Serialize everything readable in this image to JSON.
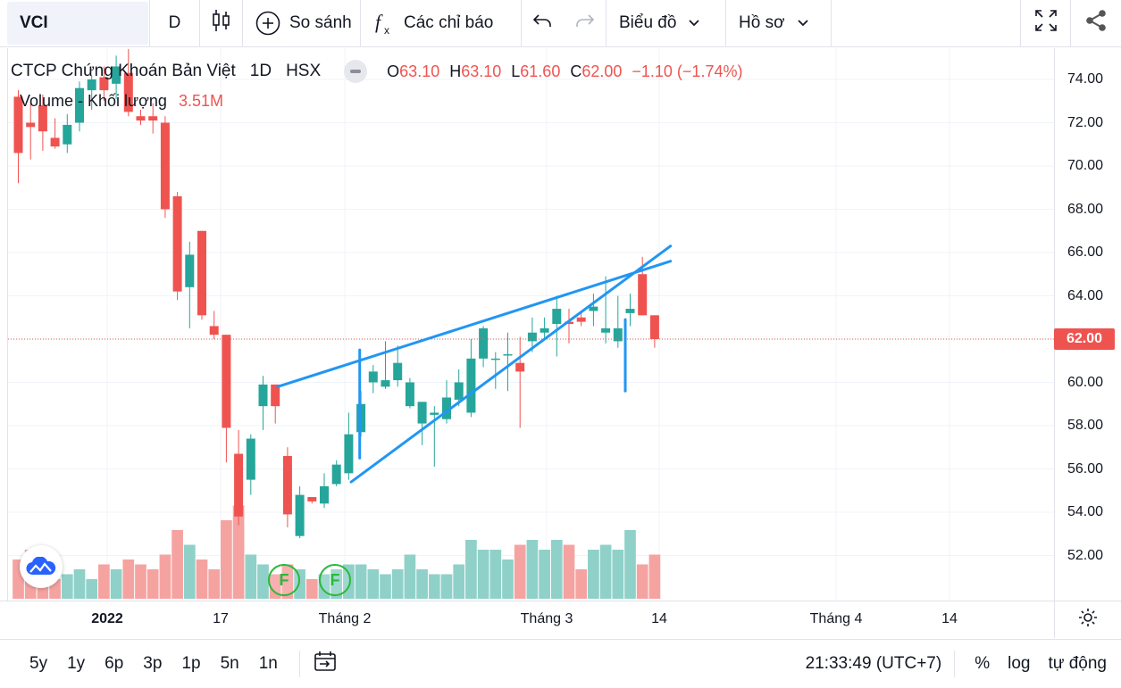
{
  "toolbar": {
    "symbol": "VCI",
    "interval": "D",
    "compare_label": "So sánh",
    "indicators_label": "Các chỉ báo",
    "chart_type_label": "Biểu đồ",
    "profile_label": "Hồ sơ",
    "icons": [
      "candles-icon",
      "plus-circle-icon",
      "fx-icon",
      "undo-icon",
      "redo-icon",
      "chevron-down-icon",
      "fullscreen-icon",
      "share-icon"
    ]
  },
  "legend": {
    "title": "CTCP Chứng Khoán Bản Việt",
    "interval": "1D",
    "exchange": "HSX",
    "o_label": "O",
    "o_value": "63.10",
    "h_label": "H",
    "h_value": "63.10",
    "l_label": "L",
    "l_value": "61.60",
    "c_label": "C",
    "c_value": "62.00",
    "change": "−1.10 (−1.74%)",
    "volume_label": "Volume - Khối lượng",
    "volume_value": "3.51M"
  },
  "price_axis": {
    "labels": [
      "74.00",
      "72.00",
      "70.00",
      "68.00",
      "66.00",
      "64.00",
      "62.00",
      "60.00",
      "58.00",
      "56.00",
      "54.00",
      "52.00"
    ],
    "last_price": "62.00",
    "last_price_color": "#ef5350"
  },
  "time_axis": {
    "labels": [
      "2022",
      "17",
      "Tháng 2",
      "Tháng 3",
      "14",
      "Tháng 4",
      "14"
    ]
  },
  "badges": [
    "F",
    "F"
  ],
  "bottom_bar": {
    "ranges": [
      "5y",
      "1y",
      "6p",
      "3p",
      "1p",
      "5n",
      "1n"
    ],
    "clock": "21:33:49 (UTC+7)",
    "percent_label": "%",
    "log_label": "log",
    "auto_label": "tự động"
  },
  "colors": {
    "up": "#26a69a",
    "down": "#ef5350",
    "trendline": "#2196f3",
    "vol_up": "#8fd1c9",
    "vol_down": "#f5a3a1"
  },
  "chart_data": {
    "type": "candlestick",
    "symbol": "VCI",
    "ylim": [
      50.0,
      75.5
    ],
    "candles": [
      {
        "o": 73.2,
        "h": 73.5,
        "l": 69.2,
        "c": 70.6
      },
      {
        "o": 72.0,
        "h": 72.9,
        "l": 70.3,
        "c": 71.8
      },
      {
        "o": 72.8,
        "h": 73.3,
        "l": 70.7,
        "c": 71.6
      },
      {
        "o": 71.3,
        "h": 72.2,
        "l": 70.8,
        "c": 70.9
      },
      {
        "o": 71.0,
        "h": 72.4,
        "l": 70.6,
        "c": 71.9
      },
      {
        "o": 72.0,
        "h": 73.9,
        "l": 71.6,
        "c": 73.6
      },
      {
        "o": 73.5,
        "h": 74.2,
        "l": 72.6,
        "c": 74.0
      },
      {
        "o": 74.1,
        "h": 74.6,
        "l": 73.0,
        "c": 73.5
      },
      {
        "o": 73.8,
        "h": 75.1,
        "l": 73.1,
        "c": 74.6
      },
      {
        "o": 74.3,
        "h": 75.4,
        "l": 72.3,
        "c": 72.5
      },
      {
        "o": 72.3,
        "h": 72.6,
        "l": 71.9,
        "c": 72.1
      },
      {
        "o": 72.3,
        "h": 72.9,
        "l": 71.5,
        "c": 72.1
      },
      {
        "o": 72.0,
        "h": 72.3,
        "l": 67.6,
        "c": 68.0
      },
      {
        "o": 68.6,
        "h": 68.8,
        "l": 63.8,
        "c": 64.2
      },
      {
        "o": 64.4,
        "h": 66.5,
        "l": 62.5,
        "c": 65.9
      },
      {
        "o": 67.0,
        "h": 67.0,
        "l": 62.9,
        "c": 63.1
      },
      {
        "o": 62.6,
        "h": 63.3,
        "l": 62.0,
        "c": 62.2
      },
      {
        "o": 62.2,
        "h": 62.2,
        "l": 56.3,
        "c": 57.9
      },
      {
        "o": 56.7,
        "h": 57.8,
        "l": 53.4,
        "c": 53.8
      },
      {
        "o": 55.5,
        "h": 57.6,
        "l": 54.8,
        "c": 57.4
      },
      {
        "o": 58.9,
        "h": 60.3,
        "l": 57.8,
        "c": 59.9
      },
      {
        "o": 59.9,
        "h": 59.9,
        "l": 58.1,
        "c": 58.9
      },
      {
        "o": 56.6,
        "h": 57.0,
        "l": 53.3,
        "c": 53.9
      },
      {
        "o": 52.9,
        "h": 55.2,
        "l": 52.8,
        "c": 54.8
      },
      {
        "o": 54.7,
        "h": 54.7,
        "l": 54.4,
        "c": 54.5
      },
      {
        "o": 54.4,
        "h": 55.8,
        "l": 54.2,
        "c": 55.2
      },
      {
        "o": 55.3,
        "h": 56.4,
        "l": 55.2,
        "c": 56.2
      },
      {
        "o": 55.8,
        "h": 58.6,
        "l": 55.5,
        "c": 57.6
      },
      {
        "o": 57.7,
        "h": 59.6,
        "l": 57.5,
        "c": 59.0
      },
      {
        "o": 60.0,
        "h": 60.8,
        "l": 59.5,
        "c": 60.5
      },
      {
        "o": 59.8,
        "h": 61.9,
        "l": 59.7,
        "c": 60.1
      },
      {
        "o": 60.1,
        "h": 61.7,
        "l": 59.8,
        "c": 60.9
      },
      {
        "o": 58.9,
        "h": 60.2,
        "l": 58.8,
        "c": 60.0
      },
      {
        "o": 58.1,
        "h": 58.9,
        "l": 57.1,
        "c": 59.1
      },
      {
        "o": 58.5,
        "h": 58.9,
        "l": 56.1,
        "c": 58.6
      },
      {
        "o": 58.3,
        "h": 60.1,
        "l": 58.1,
        "c": 59.3
      },
      {
        "o": 59.2,
        "h": 60.6,
        "l": 58.9,
        "c": 60.0
      },
      {
        "o": 58.6,
        "h": 62.0,
        "l": 58.4,
        "c": 61.1
      },
      {
        "o": 61.1,
        "h": 62.6,
        "l": 60.7,
        "c": 62.5
      },
      {
        "o": 61.1,
        "h": 61.4,
        "l": 59.7,
        "c": 61.1
      },
      {
        "o": 61.3,
        "h": 62.3,
        "l": 59.6,
        "c": 61.3
      },
      {
        "o": 60.9,
        "h": 62.1,
        "l": 57.9,
        "c": 60.5
      },
      {
        "o": 61.9,
        "h": 63.0,
        "l": 61.4,
        "c": 62.3
      },
      {
        "o": 62.3,
        "h": 63.0,
        "l": 62.0,
        "c": 62.5
      },
      {
        "o": 62.7,
        "h": 64.0,
        "l": 61.2,
        "c": 63.4
      },
      {
        "o": 62.8,
        "h": 63.4,
        "l": 61.8,
        "c": 62.7
      },
      {
        "o": 63.0,
        "h": 63.3,
        "l": 62.6,
        "c": 62.8
      },
      {
        "o": 63.3,
        "h": 64.1,
        "l": 62.6,
        "c": 63.5
      },
      {
        "o": 62.3,
        "h": 64.9,
        "l": 61.8,
        "c": 62.5
      },
      {
        "o": 61.9,
        "h": 64.0,
        "l": 61.6,
        "c": 62.5
      },
      {
        "o": 63.2,
        "h": 64.1,
        "l": 62.6,
        "c": 63.4
      },
      {
        "o": 65.0,
        "h": 65.8,
        "l": 63.1,
        "c": 63.1
      },
      {
        "o": 63.1,
        "h": 63.1,
        "l": 61.6,
        "c": 62.0
      }
    ],
    "volume_units": "relative",
    "volumes": [
      0.8,
      1.0,
      0.6,
      0.4,
      0.5,
      0.6,
      0.4,
      0.7,
      0.6,
      0.8,
      0.7,
      0.6,
      0.9,
      1.4,
      1.1,
      0.8,
      0.6,
      1.6,
      1.9,
      0.9,
      0.7,
      0.5,
      0.7,
      0.6,
      0.4,
      0.5,
      0.6,
      0.7,
      0.7,
      0.6,
      0.5,
      0.6,
      0.9,
      0.6,
      0.5,
      0.5,
      0.7,
      1.2,
      1.0,
      1.0,
      0.8,
      1.1,
      1.2,
      1.0,
      1.2,
      1.1,
      0.6,
      1.0,
      1.1,
      1.0,
      1.4,
      0.7,
      0.9
    ]
  },
  "trendlines": [
    {
      "from": {
        "bar": 21.2,
        "price": 59.8
      },
      "to": {
        "bar": 53.3,
        "price": 65.6
      }
    },
    {
      "from": {
        "bar": 27.2,
        "price": 55.4
      },
      "to": {
        "bar": 53.3,
        "price": 66.3
      }
    },
    {
      "from": {
        "bar": 27.9,
        "price": 56.5
      },
      "to": {
        "bar": 27.9,
        "price": 61.5
      }
    },
    {
      "from": {
        "bar": 49.6,
        "price": 59.6
      },
      "to": {
        "bar": 49.6,
        "price": 62.9
      }
    }
  ]
}
